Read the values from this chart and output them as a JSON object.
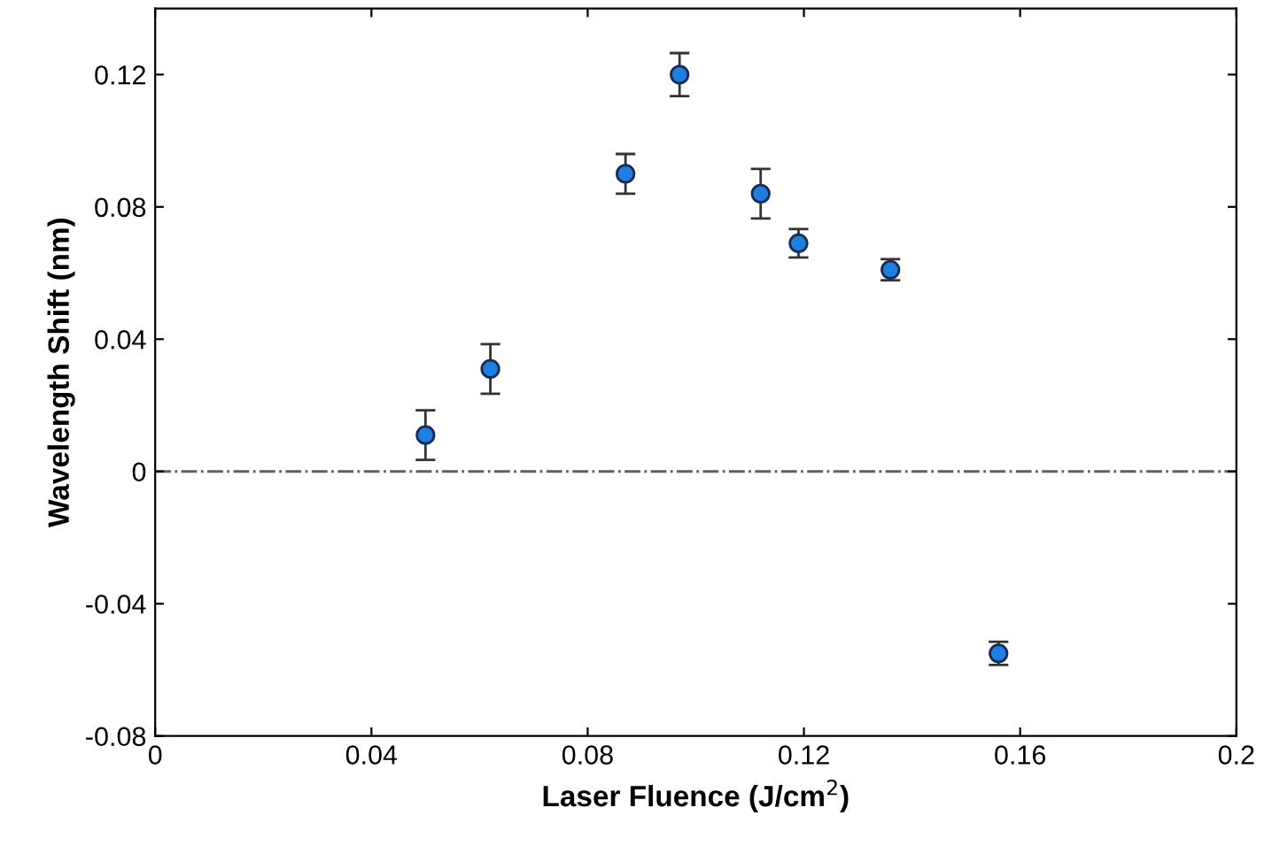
{
  "chart_data": {
    "type": "scatter",
    "xlabel": "Laser Fluence (J/cm$^{2}$)",
    "ylabel": "Wavelength Shift (nm)",
    "x": [
      0.05,
      0.062,
      0.087,
      0.097,
      0.112,
      0.119,
      0.136,
      0.156
    ],
    "values": [
      0.011,
      0.031,
      0.09,
      0.12,
      0.084,
      0.069,
      0.061,
      -0.055
    ],
    "errors": [
      0.0075,
      0.0075,
      0.006,
      0.0065,
      0.0075,
      0.0043,
      0.0032,
      0.0035
    ],
    "color": "#1e7fe0",
    "marker": "circle",
    "xlim": [
      0,
      0.2
    ],
    "xticks": [
      0,
      0.04,
      0.08,
      0.12,
      0.16,
      0.2
    ],
    "ylim": [
      -0.08,
      0.14
    ],
    "yticks": [
      {
        "value": -0.08,
        "label": "-0.08"
      },
      {
        "value": -0.04,
        "label": "-0.04"
      },
      0,
      0.04,
      0.08,
      0.12
    ],
    "ref_lines": [
      {
        "axis": "y",
        "value": 0,
        "color": "#606060",
        "line_style": "dashdot"
      }
    ],
    "grid": false,
    "legend": false
  }
}
